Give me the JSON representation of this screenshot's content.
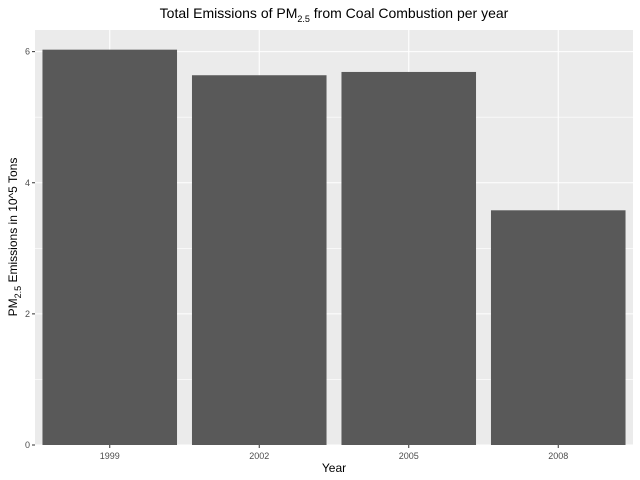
{
  "chart_data": {
    "type": "bar",
    "title": {
      "prefix": "Total Emissions of PM",
      "subscript": "2.5",
      "suffix": " from Coal Combustion per year"
    },
    "xlabel": "Year",
    "ylabel": {
      "prefix": "PM",
      "subscript": "2.5",
      "suffix": " Emissions in 10^5 Tons"
    },
    "categories": [
      "1999",
      "2002",
      "2005",
      "2008"
    ],
    "values": [
      6.03,
      5.64,
      5.69,
      3.58
    ],
    "ylim": [
      0,
      6.33
    ],
    "yticks": [
      0,
      2,
      4,
      6
    ],
    "colors": {
      "panel": "#ebebeb",
      "grid_major": "#ffffff",
      "bar": "#595959"
    },
    "grid": true
  }
}
